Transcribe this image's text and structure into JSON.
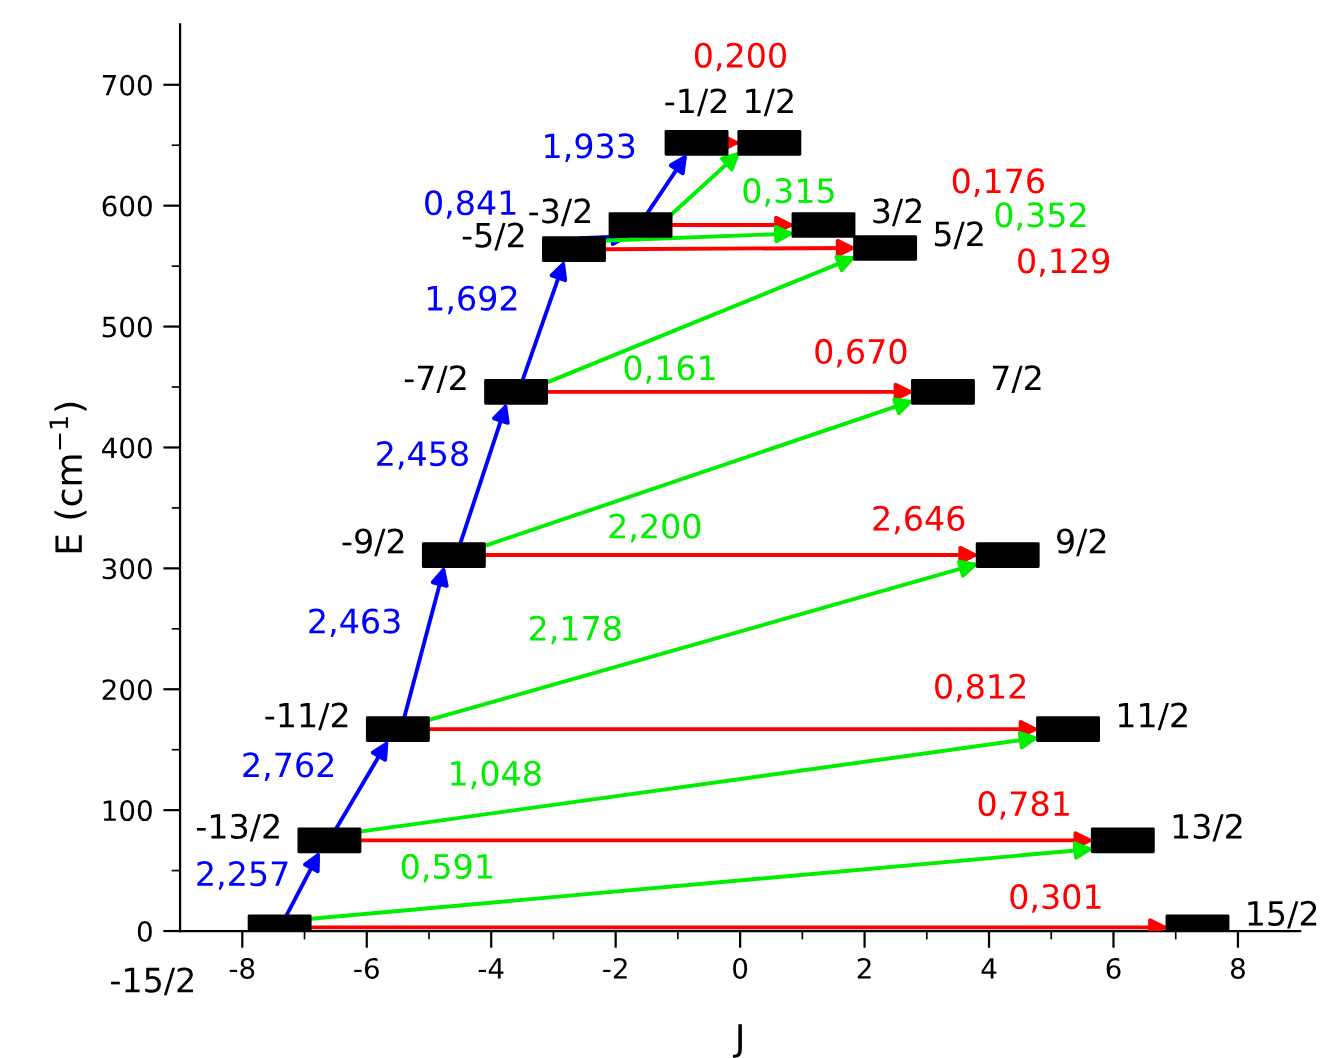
{
  "chart_data": {
    "type": "scatter",
    "xlabel": "J",
    "ylabel": "E (cm$^{−1}$)",
    "marker": "square",
    "grid": false,
    "legend": false,
    "xlim": [
      -9,
      9
    ],
    "ylim": [
      0,
      750
    ],
    "xticks": [
      -8,
      {
        "value": -7,
        "label": null
      },
      -6,
      {
        "value": -5,
        "label": null
      },
      -4,
      {
        "value": -3,
        "label": null
      },
      -2,
      {
        "value": -1,
        "label": null
      },
      0,
      {
        "value": 1,
        "label": null
      },
      2,
      {
        "value": 3,
        "label": null
      },
      4,
      {
        "value": 5,
        "label": null
      },
      6,
      {
        "value": 7,
        "label": null
      },
      8
    ],
    "yticks": [
      0,
      {
        "value": 50,
        "label": null
      },
      100,
      {
        "value": 150,
        "label": null
      },
      200,
      {
        "value": 250,
        "label": null
      },
      300,
      {
        "value": 350,
        "label": null
      },
      400,
      {
        "value": 450,
        "label": null
      },
      500,
      {
        "value": 550,
        "label": null
      },
      600,
      {
        "value": 650,
        "label": null
      },
      700
    ],
    "x": [
      -7.4,
      -6.6,
      -5.5,
      -4.6,
      -3.6,
      -2.67,
      -1.6,
      -0.7,
      0.47,
      1.34,
      2.33,
      3.26,
      4.3,
      5.27,
      6.15,
      7.35
    ],
    "values": [
      3,
      75,
      167,
      311,
      446,
      564,
      584,
      652,
      652,
      584,
      565,
      446,
      311,
      167,
      75,
      3
    ],
    "color": "#000000",
    "annotations": [
      {
        "text": "-15/2",
        "x": -7.4,
        "y": 3
      },
      {
        "text": "-13/2",
        "x": -6.6,
        "y": 75
      },
      {
        "text": "-11/2",
        "x": -5.5,
        "y": 167
      },
      {
        "text": "-9/2",
        "x": -4.6,
        "y": 311
      },
      {
        "text": "-7/2",
        "x": -3.6,
        "y": 446
      },
      {
        "text": "-5/2",
        "x": -2.67,
        "y": 564
      },
      {
        "text": "-3/2",
        "x": -1.6,
        "y": 584
      },
      {
        "text": "-1/2",
        "x": -0.7,
        "y": 652
      },
      {
        "text": "1/2",
        "x": 0.47,
        "y": 652
      },
      {
        "text": "3/2",
        "x": 1.34,
        "y": 584
      },
      {
        "text": "5/2",
        "x": 2.33,
        "y": 565
      },
      {
        "text": "7/2",
        "x": 3.26,
        "y": 446
      },
      {
        "text": "9/2",
        "x": 4.3,
        "y": 311
      },
      {
        "text": "11/2",
        "x": 5.27,
        "y": 167
      },
      {
        "text": "13/2",
        "x": 6.15,
        "y": 75
      },
      {
        "text": "15/2",
        "x": 7.35,
        "y": 3
      },
      "2,257",
      "2,762",
      "2,463",
      "2,458",
      "1,692",
      "0,841",
      "1,933",
      "0,301",
      "0,781",
      "0,812",
      "2,646",
      {
        "text": "0,670",
        "x": 3.26,
        "y": 446
      },
      "0,129",
      "0,176",
      "0,200",
      "0,591",
      "1,048",
      "2,178",
      "2,200",
      "0,161",
      "0,352",
      {
        "text": "0,315",
        "x": 0.47,
        "y": 652
      }
    ]
  }
}
